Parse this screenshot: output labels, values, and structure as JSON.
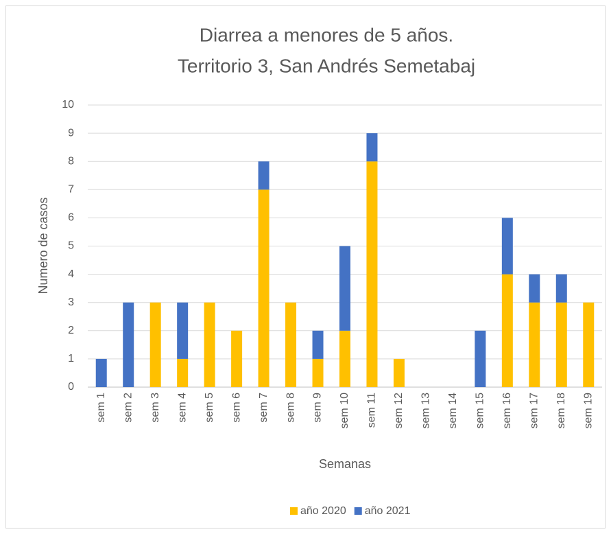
{
  "chart_data": {
    "type": "bar",
    "stacked": true,
    "title": [
      "Diarrea a menores de 5 años.",
      "Territorio 3, San Andrés Semetabaj"
    ],
    "x_label": "Semanas",
    "y_label": "Numero de casos",
    "categories": [
      "sem 1",
      "sem 2",
      "sem 3",
      "sem 4",
      "sem 5",
      "sem 6",
      "sem 7",
      "sem 8",
      "sem 9",
      "sem 10",
      "sem 11",
      "sem 12",
      "sem 13",
      "sem 14",
      "sem 15",
      "sem 16",
      "sem 17",
      "sem 18",
      "sem 19"
    ],
    "series": [
      {
        "name": "año 2020",
        "color": "#FFC000",
        "values": [
          0,
          0,
          3,
          1,
          3,
          2,
          7,
          3,
          1,
          2,
          8,
          1,
          0,
          0,
          0,
          4,
          3,
          3,
          3
        ]
      },
      {
        "name": "año 2021",
        "color": "#4472C4",
        "values": [
          1,
          3,
          0,
          2,
          0,
          0,
          1,
          0,
          1,
          3,
          1,
          0,
          0,
          0,
          2,
          2,
          1,
          1,
          0
        ]
      }
    ],
    "ylim": [
      0,
      10
    ],
    "yticks": [
      0,
      1,
      2,
      3,
      4,
      5,
      6,
      7,
      8,
      9,
      10
    ],
    "grid": true,
    "legend": "bottom"
  }
}
